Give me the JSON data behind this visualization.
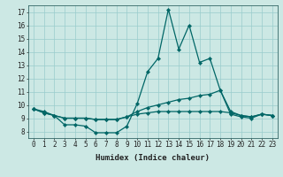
{
  "xlabel": "Humidex (Indice chaleur)",
  "background_color": "#cce8e4",
  "grid_color": "#99cccc",
  "line_color": "#006666",
  "x_values": [
    0,
    1,
    2,
    3,
    4,
    5,
    6,
    7,
    8,
    9,
    10,
    11,
    12,
    13,
    14,
    15,
    16,
    17,
    18,
    19,
    20,
    21,
    22,
    23
  ],
  "line1": [
    9.7,
    9.5,
    9.2,
    8.5,
    8.5,
    8.4,
    7.9,
    7.9,
    7.9,
    8.4,
    10.1,
    12.5,
    13.5,
    17.2,
    14.2,
    16.0,
    13.2,
    13.5,
    11.1,
    9.3,
    9.1,
    9.0,
    9.3,
    9.2
  ],
  "line2": [
    9.7,
    9.4,
    9.2,
    9.0,
    9.0,
    9.0,
    8.9,
    8.9,
    8.9,
    9.1,
    9.5,
    9.8,
    10.0,
    10.2,
    10.4,
    10.5,
    10.7,
    10.8,
    11.1,
    9.5,
    9.2,
    9.1,
    9.3,
    9.2
  ],
  "line3": [
    9.7,
    9.4,
    9.2,
    9.0,
    9.0,
    9.0,
    8.9,
    8.9,
    8.9,
    9.1,
    9.3,
    9.4,
    9.5,
    9.5,
    9.5,
    9.5,
    9.5,
    9.5,
    9.5,
    9.4,
    9.2,
    9.1,
    9.3,
    9.2
  ],
  "xlim": [
    -0.5,
    23.5
  ],
  "ylim": [
    7.5,
    17.5
  ],
  "yticks": [
    8,
    9,
    10,
    11,
    12,
    13,
    14,
    15,
    16,
    17
  ],
  "xticks": [
    0,
    1,
    2,
    3,
    4,
    5,
    6,
    7,
    8,
    9,
    10,
    11,
    12,
    13,
    14,
    15,
    16,
    17,
    18,
    19,
    20,
    21,
    22,
    23
  ]
}
